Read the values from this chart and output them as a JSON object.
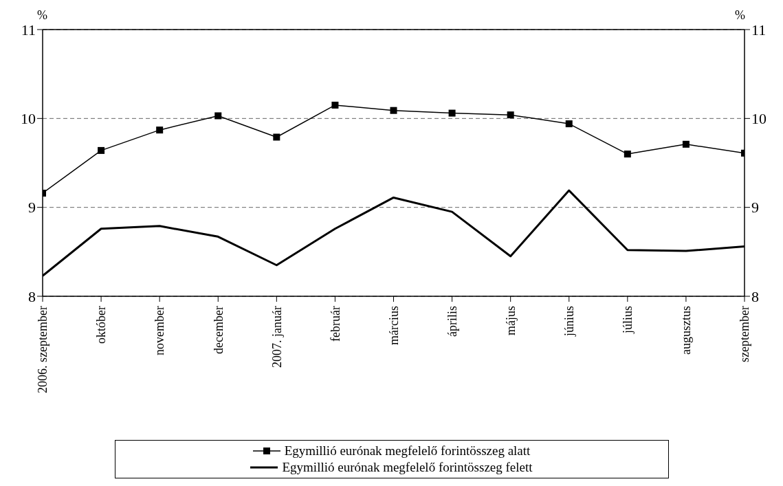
{
  "chart_data": {
    "type": "line",
    "categories": [
      "2006. szeptember",
      "október",
      "november",
      "december",
      "2007. január",
      "február",
      "március",
      "április",
      "május",
      "június",
      "július",
      "augusztus",
      "szeptember"
    ],
    "series": [
      {
        "name": "Egymillió eurónak megfelelő forintösszeg alatt",
        "color": "#000000",
        "marker": "square",
        "values": [
          9.16,
          9.64,
          9.87,
          10.03,
          9.79,
          10.15,
          10.09,
          10.06,
          10.04,
          9.94,
          9.6,
          9.71,
          9.61
        ]
      },
      {
        "name": "Egymillió eurónak megfelelő forintösszeg felett",
        "color": "#000000",
        "marker": "none",
        "values": [
          8.23,
          8.76,
          8.79,
          8.67,
          8.35,
          8.76,
          9.11,
          8.95,
          8.45,
          9.19,
          8.52,
          8.51,
          8.56
        ]
      }
    ],
    "ylabel": "%",
    "y2label": "%",
    "ylim": [
      8,
      11
    ],
    "yticks": [
      8,
      9,
      10,
      11
    ],
    "y2lim": [
      8,
      11
    ],
    "y2ticks": [
      8,
      9,
      10,
      11
    ],
    "grid": "y",
    "legend": "bottom"
  }
}
